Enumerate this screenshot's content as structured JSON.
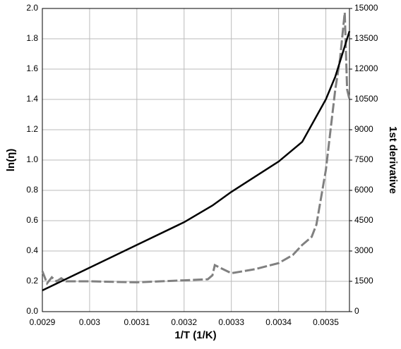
{
  "chart_data": {
    "type": "line",
    "xlabel": "1/T (1/K)",
    "ylabel": "ln(η)",
    "y2label": "1st derivative",
    "xlim": [
      0.0029,
      0.00355
    ],
    "xticks": [
      0.0029,
      0.003,
      0.0031,
      0.0032,
      0.0033,
      0.0034,
      0.0035
    ],
    "ylim": [
      0,
      2
    ],
    "yticks": [
      {
        "value": 0,
        "label": "0.0"
      },
      0.2,
      0.4,
      0.6,
      0.8,
      {
        "value": 1,
        "label": "1.0"
      },
      1.2,
      1.4,
      1.6,
      1.8,
      {
        "value": 2,
        "label": "2.0"
      }
    ],
    "y2lim": [
      0,
      15000
    ],
    "y2ticks": [
      0,
      1500,
      3000,
      4500,
      6000,
      7500,
      9000,
      10500,
      12000,
      13500,
      15000
    ],
    "grid": true,
    "series": [
      {
        "name": "ln(η)",
        "color": "#000000",
        "dashed": false,
        "x": [
          0.0029,
          0.003,
          0.0031,
          0.0032,
          0.00326,
          0.0033,
          0.0034,
          0.00345,
          0.0035,
          0.00352,
          0.00354,
          0.00355
        ],
        "values": [
          0.14,
          0.29,
          0.44,
          0.59,
          0.7,
          0.79,
          0.99,
          1.12,
          1.4,
          1.55,
          1.75,
          1.85
        ]
      },
      {
        "name": "1st derivative",
        "color": "#808080",
        "dashed": true,
        "axis": "y2",
        "x": [
          0.0029,
          0.00291,
          0.00292,
          0.00293,
          0.00294,
          0.00295,
          0.003,
          0.0031,
          0.0032,
          0.00325,
          0.00326,
          0.003265,
          0.0033,
          0.00335,
          0.0034,
          0.00343,
          0.00345,
          0.00347,
          0.00348,
          0.0035,
          0.00351,
          0.00352,
          0.00353,
          0.00354,
          0.003545,
          0.00355
        ],
        "values": [
          2000,
          1400,
          1700,
          1500,
          1650,
          1500,
          1500,
          1450,
          1550,
          1600,
          1800,
          2300,
          1900,
          2100,
          2400,
          2800,
          3300,
          3700,
          4300,
          7000,
          9000,
          11000,
          12500,
          14800,
          11000,
          10500
        ]
      }
    ]
  }
}
